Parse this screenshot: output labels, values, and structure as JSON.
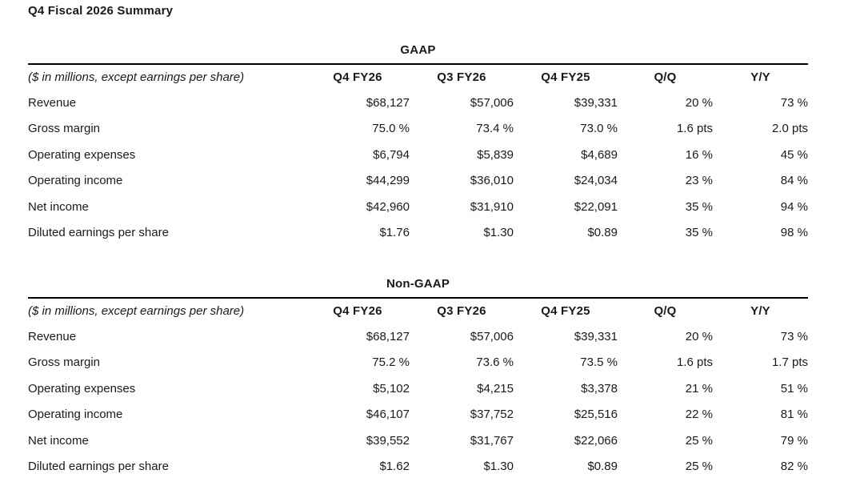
{
  "page": {
    "title": "Q4 Fiscal 2026 Summary"
  },
  "colors": {
    "background": "#ffffff",
    "text": "#1a1a1a",
    "rule": "#000000"
  },
  "tables": [
    {
      "caption": "GAAP",
      "row_label_header": "($ in millions, except earnings per share)",
      "columns": [
        "Q4 FY26",
        "Q3 FY26",
        "Q4 FY25",
        "Q/Q",
        "Y/Y"
      ],
      "rows": [
        {
          "label": "Revenue",
          "values": [
            "$68,127",
            "$57,006",
            "$39,331",
            "20 %",
            "73 %"
          ]
        },
        {
          "label": "Gross margin",
          "values": [
            "75.0 %",
            "73.4 %",
            "73.0 %",
            "1.6 pts",
            "2.0 pts"
          ]
        },
        {
          "label": "Operating expenses",
          "values": [
            "$6,794",
            "$5,839",
            "$4,689",
            "16 %",
            "45 %"
          ]
        },
        {
          "label": "Operating income",
          "values": [
            "$44,299",
            "$36,010",
            "$24,034",
            "23 %",
            "84 %"
          ]
        },
        {
          "label": "Net income",
          "values": [
            "$42,960",
            "$31,910",
            "$22,091",
            "35 %",
            "94 %"
          ]
        },
        {
          "label": "Diluted earnings per share",
          "values": [
            "$1.76",
            "$1.30",
            "$0.89",
            "35 %",
            "98 %"
          ]
        }
      ]
    },
    {
      "caption": "Non-GAAP",
      "row_label_header": "($ in millions, except earnings per share)",
      "columns": [
        "Q4 FY26",
        "Q3 FY26",
        "Q4 FY25",
        "Q/Q",
        "Y/Y"
      ],
      "rows": [
        {
          "label": "Revenue",
          "values": [
            "$68,127",
            "$57,006",
            "$39,331",
            "20 %",
            "73 %"
          ]
        },
        {
          "label": "Gross margin",
          "values": [
            "75.2 %",
            "73.6 %",
            "73.5 %",
            "1.6 pts",
            "1.7 pts"
          ]
        },
        {
          "label": "Operating expenses",
          "values": [
            "$5,102",
            "$4,215",
            "$3,378",
            "21 %",
            "51 %"
          ]
        },
        {
          "label": "Operating income",
          "values": [
            "$46,107",
            "$37,752",
            "$25,516",
            "22 %",
            "81 %"
          ]
        },
        {
          "label": "Net income",
          "values": [
            "$39,552",
            "$31,767",
            "$22,066",
            "25 %",
            "79 %"
          ]
        },
        {
          "label": "Diluted earnings per share",
          "values": [
            "$1.62",
            "$1.30",
            "$0.89",
            "25 %",
            "82 %"
          ]
        }
      ]
    }
  ]
}
